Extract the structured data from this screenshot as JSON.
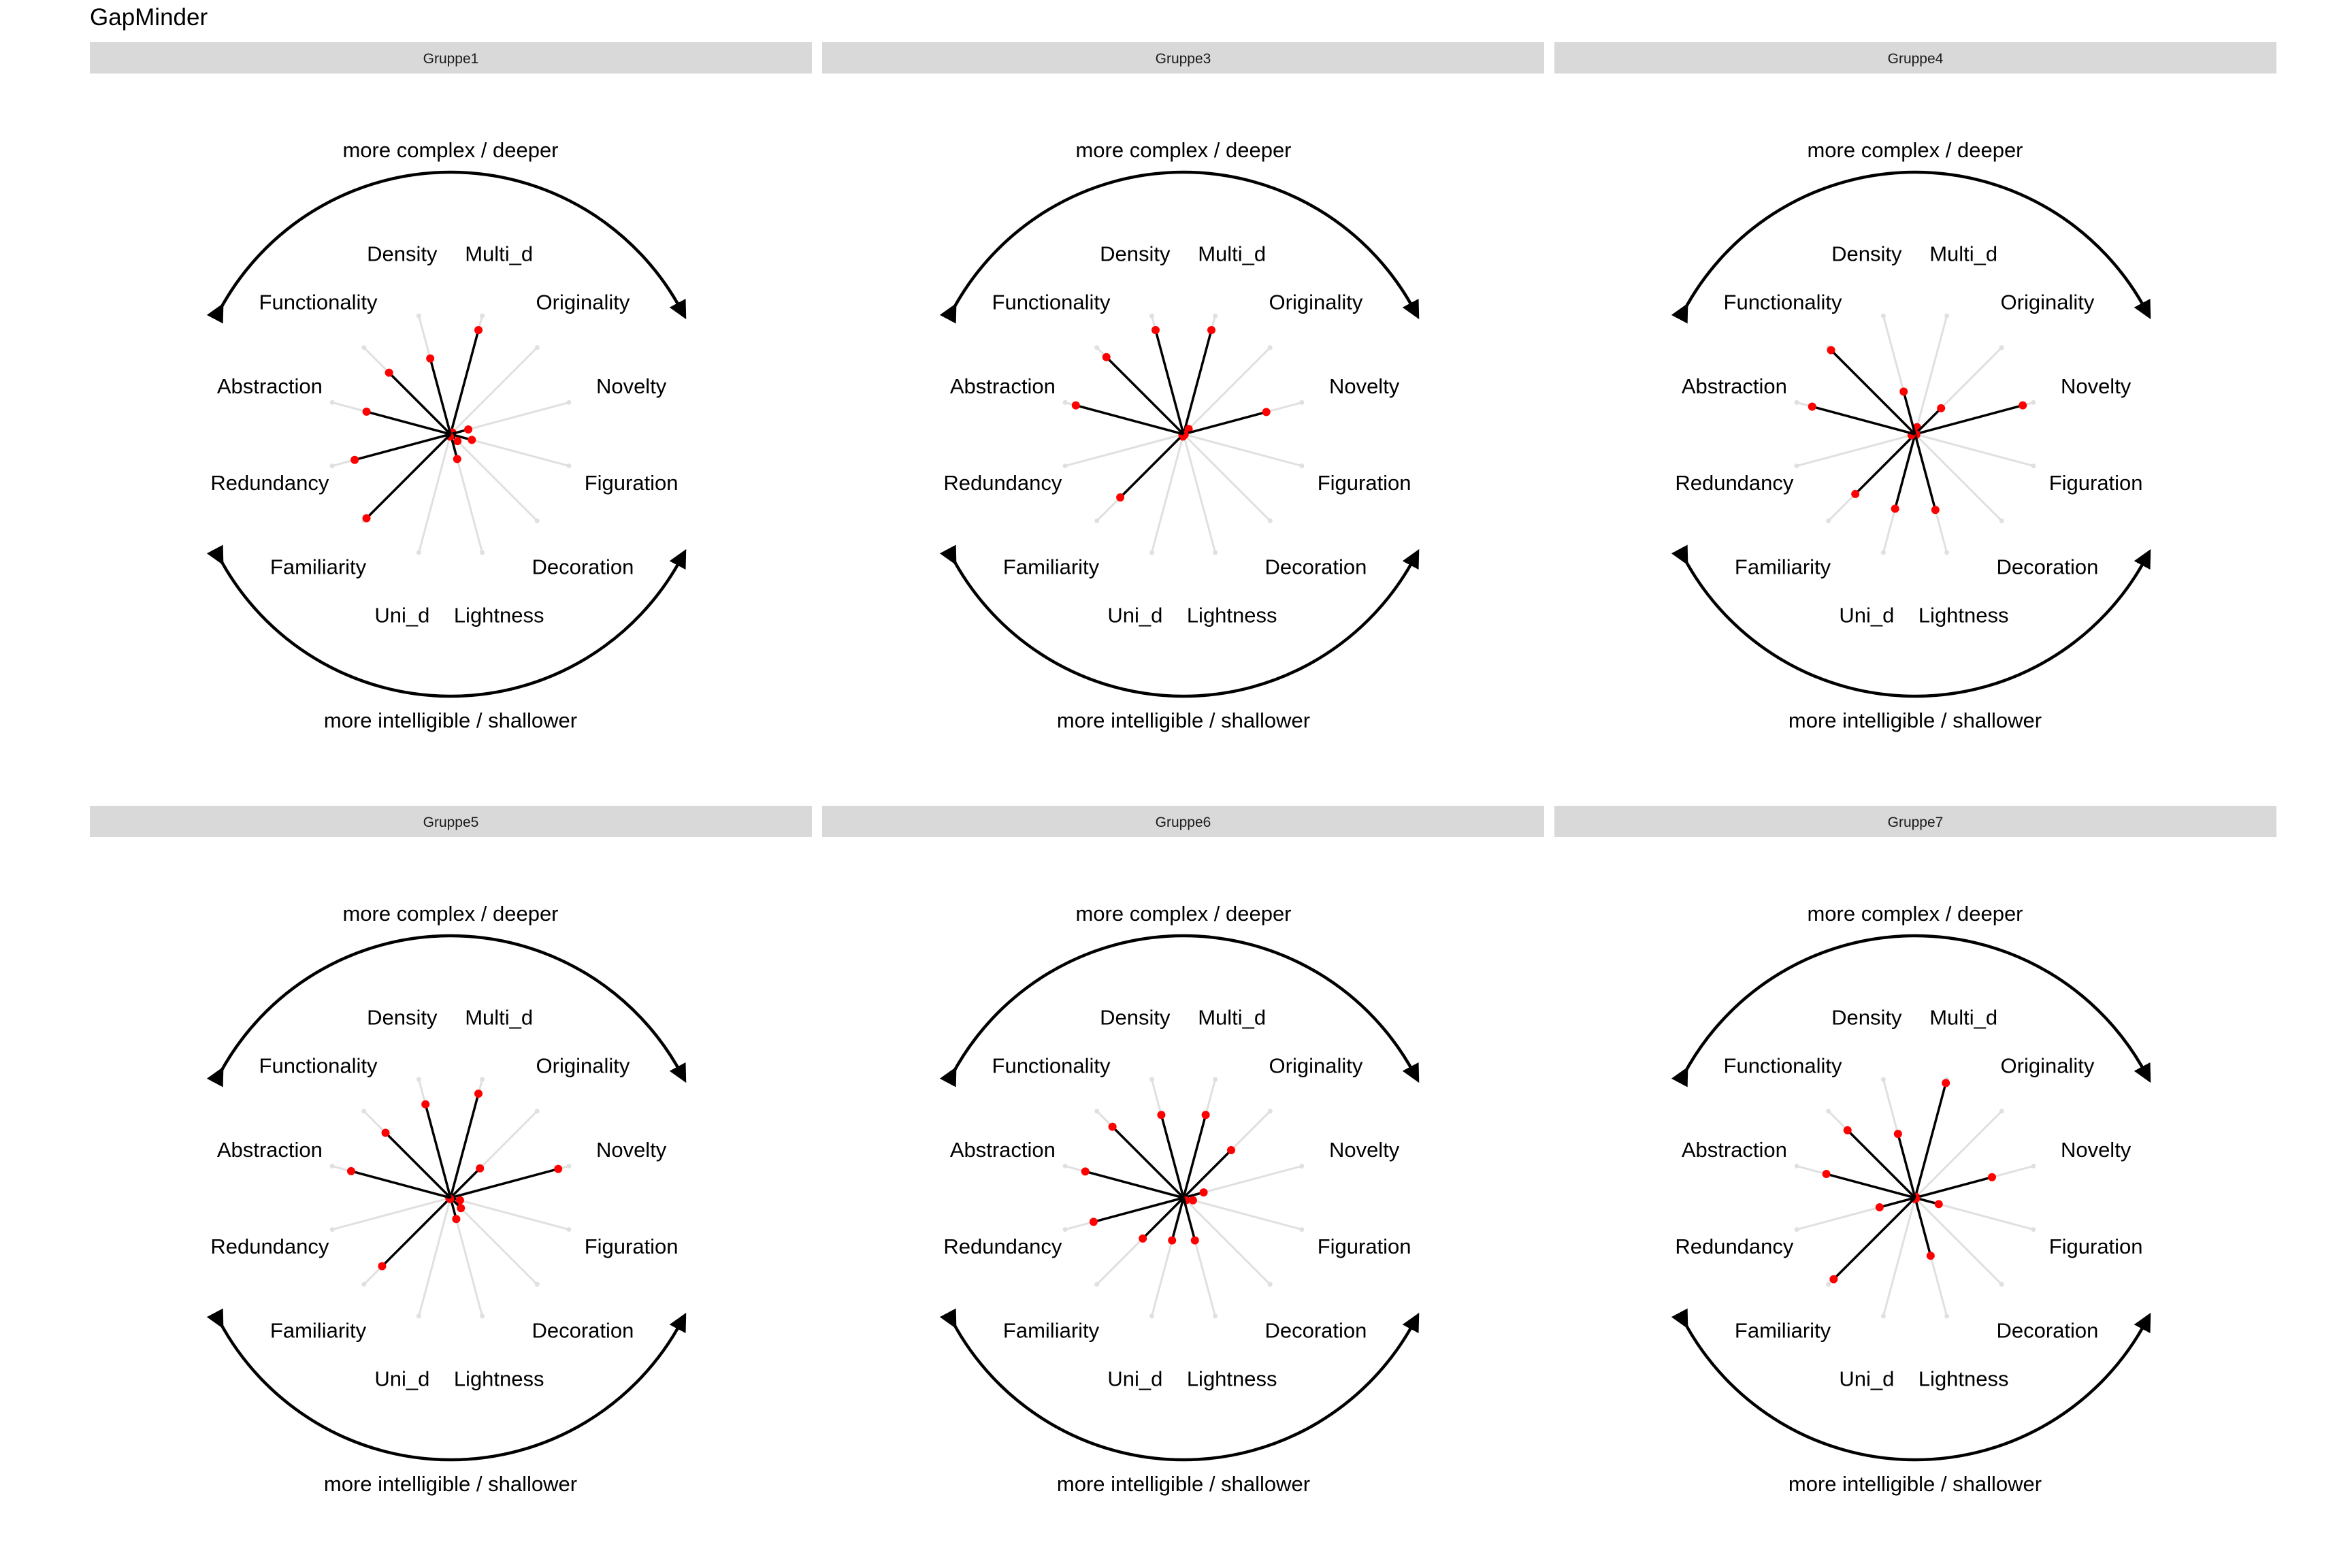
{
  "title": "GapMinder",
  "annotations": {
    "top": "more complex / deeper",
    "bottom": "more intelligible / shallower"
  },
  "colors": {
    "point": "#ff0000",
    "spoke": "#000000",
    "guide": "#e0e0e0",
    "strip_bg": "#d9d9d9",
    "arrow": "#000000"
  },
  "chart_data": {
    "type": "radial-spoke",
    "axes": [
      "Multi_d",
      "Originality",
      "Novelty",
      "Figuration",
      "Decoration",
      "Lightness",
      "Uni_d",
      "Familiarity",
      "Redundancy",
      "Abstraction",
      "Functionality",
      "Density"
    ],
    "rmax": 1,
    "panels": [
      {
        "name": "Gruppe1",
        "values": [
          0.88,
          0.02,
          0.15,
          0.18,
          0.08,
          0.21,
          0.02,
          0.97,
          0.81,
          0.71,
          0.71,
          0.64
        ]
      },
      {
        "name": "Gruppe3",
        "values": [
          0.88,
          0.06,
          0.7,
          0.01,
          0.01,
          0.01,
          0.02,
          0.73,
          0.01,
          0.91,
          0.89,
          0.88
        ]
      },
      {
        "name": "Gruppe4",
        "values": [
          0.06,
          0.3,
          0.91,
          0.01,
          0.01,
          0.64,
          0.63,
          0.69,
          0.03,
          0.87,
          0.97,
          0.36
        ]
      },
      {
        "name": "Gruppe5",
        "values": [
          0.88,
          0.34,
          0.91,
          0.08,
          0.12,
          0.18,
          0.01,
          0.79,
          0.01,
          0.84,
          0.75,
          0.79
        ]
      },
      {
        "name": "Gruppe6",
        "values": [
          0.7,
          0.55,
          0.17,
          0.08,
          0.03,
          0.36,
          0.36,
          0.47,
          0.76,
          0.83,
          0.82,
          0.7
        ]
      },
      {
        "name": "Gruppe7",
        "values": [
          0.97,
          0.01,
          0.65,
          0.2,
          0.01,
          0.49,
          0.01,
          0.94,
          0.3,
          0.75,
          0.78,
          0.54
        ]
      }
    ]
  }
}
